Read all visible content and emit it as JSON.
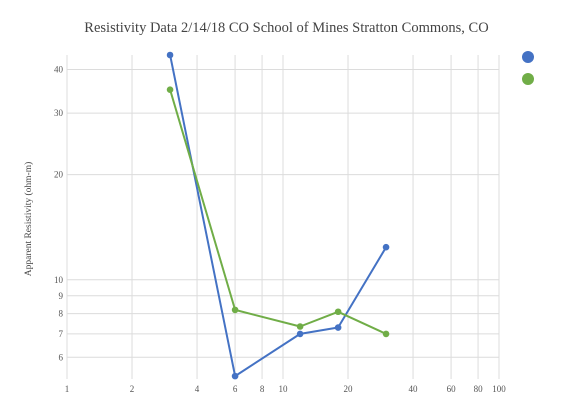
{
  "chart_data": {
    "type": "scatter",
    "title": "Resistivity Data 2/14/18 CO School of Mines Stratton Commons, CO",
    "xlabel": "",
    "ylabel": "Apparent Resistivity (ohm-m)",
    "x_scale": "log",
    "y_scale": "log",
    "xlim": [
      1,
      100
    ],
    "ylim": [
      5.2,
      44
    ],
    "x_ticks": [
      1,
      2,
      4,
      6,
      8,
      10,
      20,
      40,
      60,
      80,
      100
    ],
    "y_ticks": [
      6,
      7,
      8,
      9,
      10,
      20,
      30,
      40
    ],
    "grid": true,
    "legend_position": "top-right",
    "series": [
      {
        "color": "#4472c4",
        "x": [
          3,
          6,
          12,
          18,
          30
        ],
        "values": [
          44,
          5.3,
          7,
          7.3,
          12.4
        ]
      },
      {
        "color": "#70ad47",
        "x": [
          3,
          6,
          12,
          18,
          30
        ],
        "values": [
          35,
          8.2,
          7.35,
          8.1,
          7
        ]
      }
    ]
  }
}
